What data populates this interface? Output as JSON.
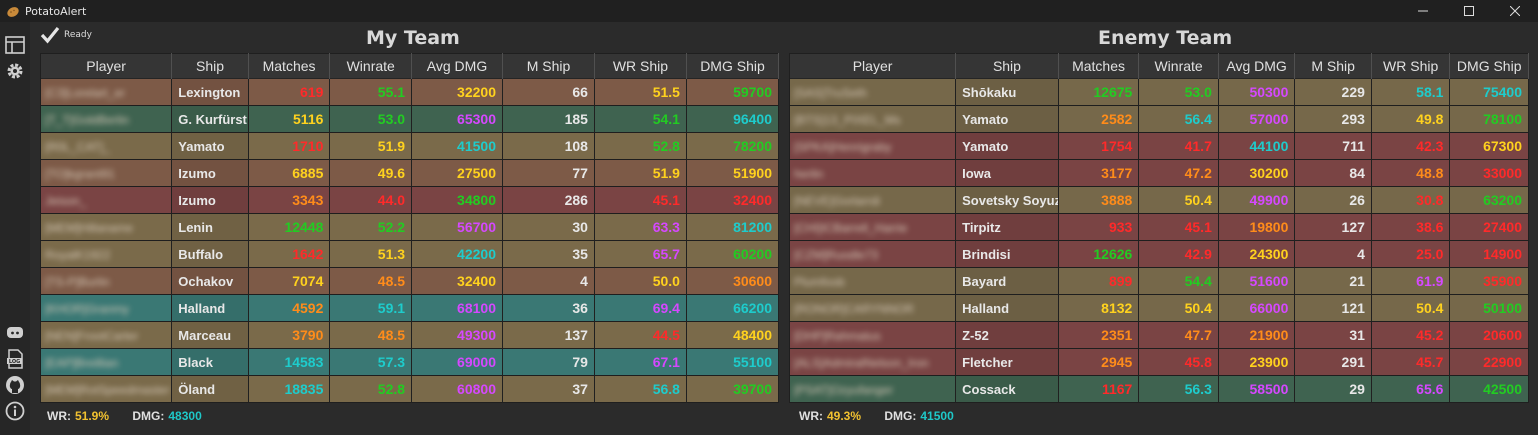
{
  "window": {
    "title": "PotatoAlert"
  },
  "status": {
    "text": "Ready"
  },
  "colors": {
    "row_green": "#3f6350",
    "row_olive": "#7a6a4a",
    "row_brown": "#7d5a47",
    "row_red": "#7a4444",
    "row_teal": "#3a7874",
    "row_olive2": "#76684a"
  },
  "columns": [
    "Player",
    "Ship",
    "Matches",
    "Winrate",
    "Avg DMG",
    "M Ship",
    "WR Ship",
    "DMG Ship"
  ],
  "my_team": {
    "title": "My Team",
    "summary": {
      "wr_label": "WR:",
      "wr": "51.9%",
      "wr_color": "#f2c230",
      "dmg_label": "DMG:",
      "dmg": "48300",
      "dmg_color": "#1ec8c8"
    },
    "rows": [
      {
        "player": "[C3]Lorelart_er",
        "ship": "Lexington",
        "bg": "#7d5a47",
        "cells": [
          [
            "619",
            "#ff2a2a"
          ],
          [
            "55.1",
            "#22cc22"
          ],
          [
            "32200",
            "#ffd21e"
          ],
          [
            "66",
            "#e8e8e8"
          ],
          [
            "51.5",
            "#ffd21e"
          ],
          [
            "59700",
            "#22cc22"
          ]
        ]
      },
      {
        "player": "[T_T]GoldBerlin",
        "ship": "G. Kurfürst",
        "bg": "#3f6350",
        "cells": [
          [
            "5116",
            "#ffd21e"
          ],
          [
            "53.0",
            "#22cc22"
          ],
          [
            "65300",
            "#d548ff"
          ],
          [
            "185",
            "#e8e8e8"
          ],
          [
            "54.1",
            "#22cc22"
          ],
          [
            "96400",
            "#1ecccc"
          ]
        ]
      },
      {
        "player": "[R0L_CAT]_",
        "ship": "Yamato",
        "bg": "#7a6a4a",
        "cells": [
          [
            "1710",
            "#ff2a2a"
          ],
          [
            "51.9",
            "#ffd21e"
          ],
          [
            "41500",
            "#1ecccc"
          ],
          [
            "108",
            "#e8e8e8"
          ],
          [
            "52.8",
            "#22cc22"
          ],
          [
            "78200",
            "#22cc22"
          ]
        ]
      },
      {
        "player": "[TO]kgrant91",
        "ship": "Izumo",
        "bg": "#7d5a47",
        "cells": [
          [
            "6885",
            "#ffd21e"
          ],
          [
            "49.6",
            "#ffd21e"
          ],
          [
            "27500",
            "#ffd21e"
          ],
          [
            "77",
            "#e8e8e8"
          ],
          [
            "51.9",
            "#ffd21e"
          ],
          [
            "51900",
            "#ffd21e"
          ]
        ]
      },
      {
        "player": "Jeison_",
        "ship": "Izumo",
        "bg": "#7a4444",
        "cells": [
          [
            "3343",
            "#ff8c1a"
          ],
          [
            "44.0",
            "#ff2a2a"
          ],
          [
            "34800",
            "#22cc22"
          ],
          [
            "286",
            "#e8e8e8"
          ],
          [
            "45.1",
            "#ff2a2a"
          ],
          [
            "32400",
            "#ff2a2a"
          ]
        ]
      },
      {
        "player": "[MEM]Hillaname",
        "ship": "Lenin",
        "bg": "#7a6a4a",
        "cells": [
          [
            "12448",
            "#22cc22"
          ],
          [
            "52.2",
            "#22cc22"
          ],
          [
            "56700",
            "#d548ff"
          ],
          [
            "30",
            "#e8e8e8"
          ],
          [
            "63.3",
            "#d548ff"
          ],
          [
            "81200",
            "#1ecccc"
          ]
        ]
      },
      {
        "player": "RoyalK1922",
        "ship": "Buffalo",
        "bg": "#7a6a4a",
        "cells": [
          [
            "1642",
            "#ff2a2a"
          ],
          [
            "51.3",
            "#ffd21e"
          ],
          [
            "42200",
            "#1ecccc"
          ],
          [
            "35",
            "#e8e8e8"
          ],
          [
            "65.7",
            "#d548ff"
          ],
          [
            "60200",
            "#22cc22"
          ]
        ]
      },
      {
        "player": "[TS-P]Burlin",
        "ship": "Ochakov",
        "bg": "#7d5a47",
        "cells": [
          [
            "7074",
            "#ffd21e"
          ],
          [
            "48.5",
            "#ff8c1a"
          ],
          [
            "32400",
            "#ffd21e"
          ],
          [
            "4",
            "#e8e8e8"
          ],
          [
            "50.0",
            "#ffd21e"
          ],
          [
            "30600",
            "#ff8c1a"
          ]
        ]
      },
      {
        "player": "[KHOR]Granmy",
        "ship": "Halland",
        "bg": "#3a7874",
        "cells": [
          [
            "4592",
            "#ff8c1a"
          ],
          [
            "59.1",
            "#1ecccc"
          ],
          [
            "68100",
            "#d548ff"
          ],
          [
            "36",
            "#e8e8e8"
          ],
          [
            "69.4",
            "#d548ff"
          ],
          [
            "66200",
            "#1ecccc"
          ]
        ]
      },
      {
        "player": "[NEN]FrootCarter",
        "ship": "Marceau",
        "bg": "#7a6a4a",
        "cells": [
          [
            "3790",
            "#ff8c1a"
          ],
          [
            "48.5",
            "#ff8c1a"
          ],
          [
            "49300",
            "#d548ff"
          ],
          [
            "137",
            "#e8e8e8"
          ],
          [
            "44.5",
            "#ff2a2a"
          ],
          [
            "48400",
            "#ffd21e"
          ]
        ]
      },
      {
        "player": "[EAP]Breillian",
        "ship": "Black",
        "bg": "#3a7874",
        "cells": [
          [
            "14583",
            "#1ecccc"
          ],
          [
            "57.3",
            "#1ecccc"
          ],
          [
            "69000",
            "#d548ff"
          ],
          [
            "79",
            "#e8e8e8"
          ],
          [
            "67.1",
            "#d548ff"
          ],
          [
            "55100",
            "#1ecccc"
          ]
        ]
      },
      {
        "player": "[MEM]RotSpeedmaster",
        "ship": "Öland",
        "bg": "#7a6a4a",
        "cells": [
          [
            "18835",
            "#1ecccc"
          ],
          [
            "52.8",
            "#22cc22"
          ],
          [
            "60800",
            "#d548ff"
          ],
          [
            "37",
            "#e8e8e8"
          ],
          [
            "56.8",
            "#1ecccc"
          ],
          [
            "39700",
            "#22cc22"
          ]
        ]
      }
    ]
  },
  "enemy_team": {
    "title": "Enemy Team",
    "summary": {
      "wr_label": "WR:",
      "wr": "49.3%",
      "wr_color": "#f2c230",
      "dmg_label": "DMG:",
      "dmg": "41500",
      "dmg_color": "#1ec8c8"
    },
    "rows": [
      {
        "player": "[SAS]TruSeth",
        "ship": "Shōkaku",
        "bg": "#76684a",
        "cells": [
          [
            "12675",
            "#22cc22"
          ],
          [
            "53.0",
            "#22cc22"
          ],
          [
            "50300",
            "#d548ff"
          ],
          [
            "229",
            "#e8e8e8"
          ],
          [
            "58.1",
            "#1ecccc"
          ],
          [
            "75400",
            "#1ecccc"
          ]
        ]
      },
      {
        "player": "[BTS]13_PIXEL_Ms",
        "ship": "Yamato",
        "bg": "#76684a",
        "cells": [
          [
            "2582",
            "#ff8c1a"
          ],
          [
            "56.4",
            "#1ecccc"
          ],
          [
            "57000",
            "#d548ff"
          ],
          [
            "293",
            "#e8e8e8"
          ],
          [
            "49.8",
            "#ffd21e"
          ],
          [
            "78100",
            "#22cc22"
          ]
        ]
      },
      {
        "player": "[SPKA]Henrigraby",
        "ship": "Yamato",
        "bg": "#7a4444",
        "cells": [
          [
            "1754",
            "#ff2a2a"
          ],
          [
            "41.7",
            "#ff2a2a"
          ],
          [
            "44100",
            "#1ecccc"
          ],
          [
            "711",
            "#e8e8e8"
          ],
          [
            "42.3",
            "#ff2a2a"
          ],
          [
            "67300",
            "#ffd21e"
          ]
        ]
      },
      {
        "player": "herlin",
        "ship": "Iowa",
        "bg": "#7a4444",
        "cells": [
          [
            "3177",
            "#ff8c1a"
          ],
          [
            "47.2",
            "#ff8c1a"
          ],
          [
            "30200",
            "#ffd21e"
          ],
          [
            "84",
            "#e8e8e8"
          ],
          [
            "48.8",
            "#ff8c1a"
          ],
          [
            "33000",
            "#ff2a2a"
          ]
        ]
      },
      {
        "player": "[NEVE]Gorlarrdi",
        "ship": "Sovetsky Soyuz",
        "bg": "#76684a",
        "cells": [
          [
            "3888",
            "#ff8c1a"
          ],
          [
            "50.4",
            "#ffd21e"
          ],
          [
            "49900",
            "#d548ff"
          ],
          [
            "26",
            "#e8e8e8"
          ],
          [
            "30.8",
            "#ff2a2a"
          ],
          [
            "63200",
            "#22cc22"
          ]
        ]
      },
      {
        "player": "[CHI]ICBarrell_Harrie",
        "ship": "Tirpitz",
        "bg": "#7a4444",
        "cells": [
          [
            "933",
            "#ff2a2a"
          ],
          [
            "45.1",
            "#ff2a2a"
          ],
          [
            "19800",
            "#ff8c1a"
          ],
          [
            "127",
            "#e8e8e8"
          ],
          [
            "38.6",
            "#ff2a2a"
          ],
          [
            "27400",
            "#ff2a2a"
          ]
        ]
      },
      {
        "player": "[CZM]Ruodle73",
        "ship": "Brindisi",
        "bg": "#7a4444",
        "cells": [
          [
            "12626",
            "#22cc22"
          ],
          [
            "42.9",
            "#ff2a2a"
          ],
          [
            "24300",
            "#ffd21e"
          ],
          [
            "4",
            "#e8e8e8"
          ],
          [
            "25.0",
            "#ff2a2a"
          ],
          [
            "14900",
            "#ff2a2a"
          ]
        ]
      },
      {
        "player": "Plumfoob",
        "ship": "Bayard",
        "bg": "#76684a",
        "cells": [
          [
            "899",
            "#ff2a2a"
          ],
          [
            "54.4",
            "#22cc22"
          ],
          [
            "51600",
            "#d548ff"
          ],
          [
            "21",
            "#e8e8e8"
          ],
          [
            "61.9",
            "#d548ff"
          ],
          [
            "35900",
            "#ff2a2a"
          ]
        ]
      },
      {
        "player": "[RONOR]CARYNNOR",
        "ship": "Halland",
        "bg": "#76684a",
        "cells": [
          [
            "8132",
            "#ffd21e"
          ],
          [
            "50.4",
            "#ffd21e"
          ],
          [
            "66000",
            "#d548ff"
          ],
          [
            "121",
            "#e8e8e8"
          ],
          [
            "50.4",
            "#ffd21e"
          ],
          [
            "50100",
            "#22cc22"
          ]
        ]
      },
      {
        "player": "[DHP]Rahmatus",
        "ship": "Z-52",
        "bg": "#7a4444",
        "cells": [
          [
            "2351",
            "#ff8c1a"
          ],
          [
            "47.7",
            "#ff8c1a"
          ],
          [
            "21900",
            "#ff8c1a"
          ],
          [
            "31",
            "#e8e8e8"
          ],
          [
            "45.2",
            "#ff2a2a"
          ],
          [
            "20600",
            "#ff2a2a"
          ]
        ]
      },
      {
        "player": "[ALS]AdmiralNelson_Iron",
        "ship": "Fletcher",
        "bg": "#7a4444",
        "cells": [
          [
            "2945",
            "#ff8c1a"
          ],
          [
            "45.8",
            "#ff2a2a"
          ],
          [
            "23900",
            "#ffd21e"
          ],
          [
            "291",
            "#e8e8e8"
          ],
          [
            "45.7",
            "#ff2a2a"
          ],
          [
            "22900",
            "#ff2a2a"
          ]
        ]
      },
      {
        "player": "[PSAT]Ozyufanger",
        "ship": "Cossack",
        "bg": "#3f6350",
        "cells": [
          [
            "1167",
            "#ff2a2a"
          ],
          [
            "56.3",
            "#1ecccc"
          ],
          [
            "58500",
            "#d548ff"
          ],
          [
            "29",
            "#e8e8e8"
          ],
          [
            "65.6",
            "#d548ff"
          ],
          [
            "42500",
            "#22cc22"
          ]
        ]
      }
    ]
  }
}
